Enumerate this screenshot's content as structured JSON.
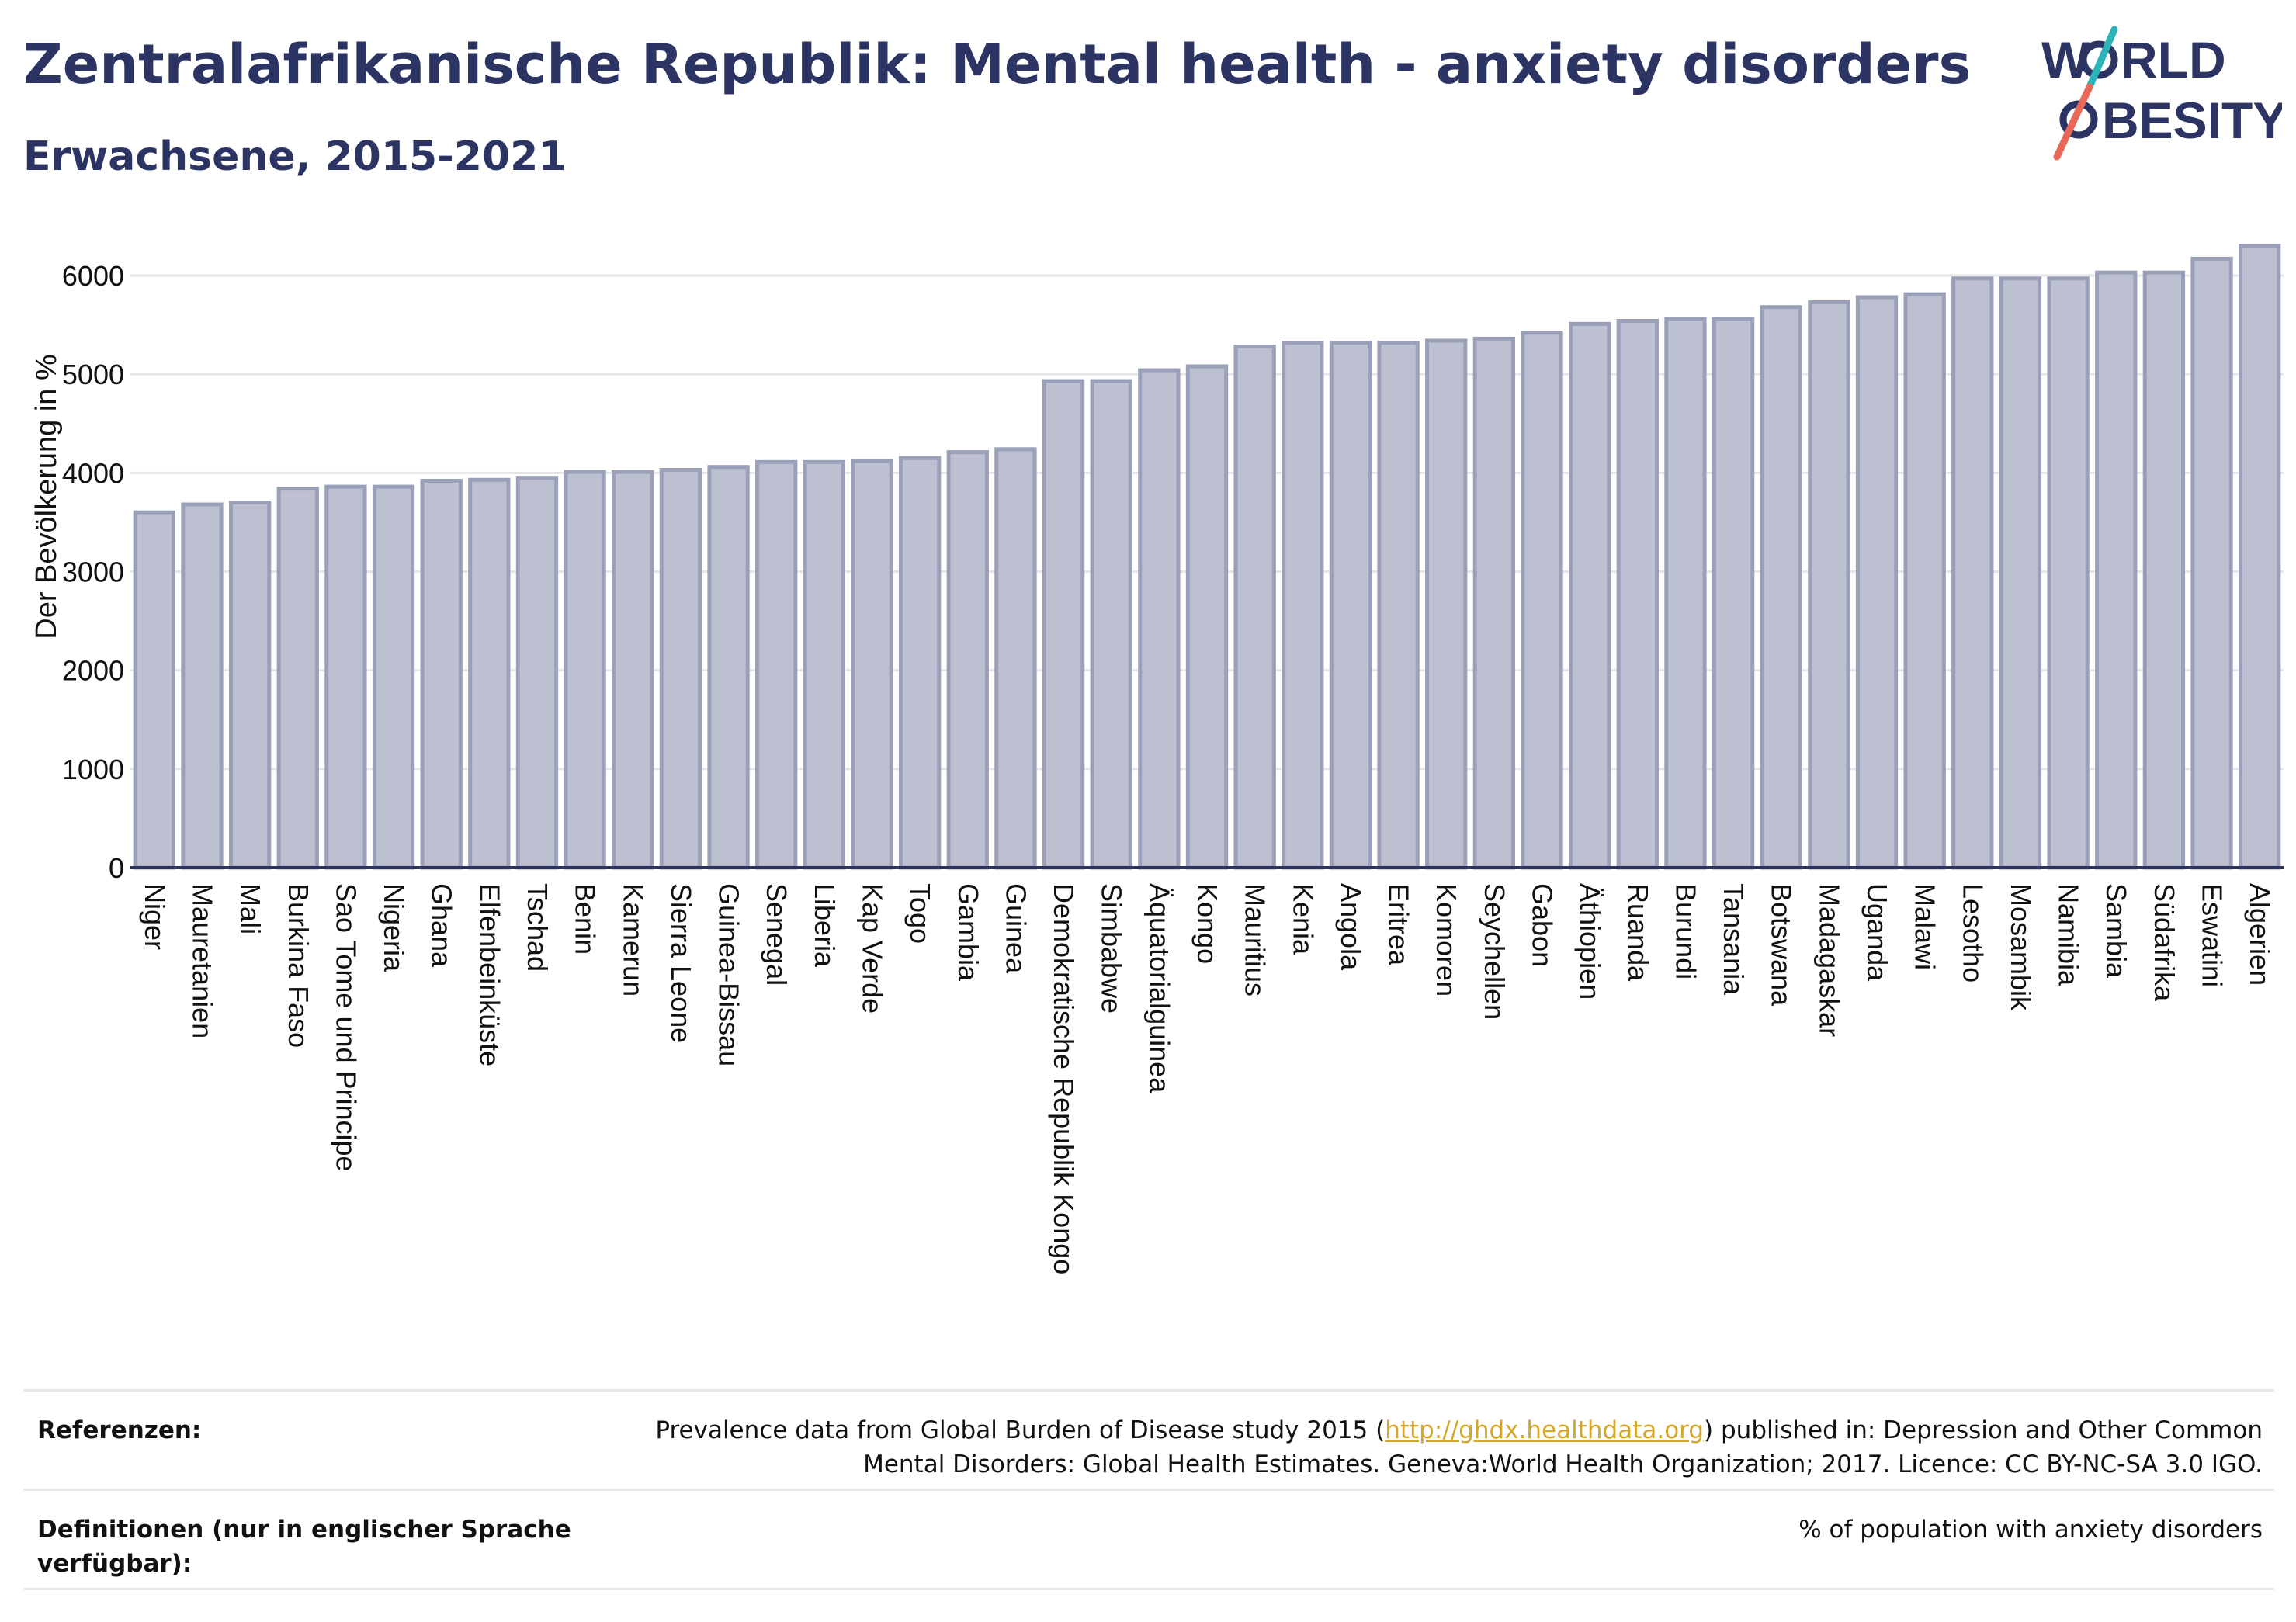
{
  "title": "Zentralafrikanische Republik: Mental health - anxiety disorders",
  "subtitle": "Erwachsene, 2015-2021",
  "logo": {
    "line1_a": "W",
    "line1_b": "RLD",
    "line2_b": "BESITY",
    "colors": {
      "navy": "#2b3462",
      "teal": "#2bb5b8",
      "coral": "#e8685a"
    }
  },
  "footer": {
    "references_label": "Referenzen:",
    "references_text_1": "Prevalence data from Global Burden of Disease study 2015 (",
    "references_link": "http://ghdx.healthdata.org",
    "references_text_2": ") published in: Depression and Other Common Mental Disorders: Global Health Estimates. Geneva:World Health Organization; 2017. Licence: CC BY-NC-SA 3.0 IGO.",
    "definitions_label": "Definitionen (nur in englischer Sprache verfügbar):",
    "definitions_text": "% of population with anxiety disorders"
  },
  "chart_data": {
    "type": "bar",
    "ylabel": "Der Bevölkerung in %",
    "xlabel": "",
    "ylim": [
      0,
      6500
    ],
    "yticks": [
      0,
      1000,
      2000,
      3000,
      4000,
      5000,
      6000
    ],
    "grid": true,
    "bar_color": "#bcc0d0",
    "bar_edge_color": "#9aa0b8",
    "categories": [
      "Niger",
      "Mauretanien",
      "Mali",
      "Burkina Faso",
      "Sao Tome und Principe",
      "Nigeria",
      "Ghana",
      "Elfenbeinküste",
      "Tschad",
      "Benin",
      "Kamerun",
      "Sierra Leone",
      "Guinea-Bissau",
      "Senegal",
      "Liberia",
      "Kap Verde",
      "Togo",
      "Gambia",
      "Guinea",
      "Demokratische Republik Kongo",
      "Simbabwe",
      "Äquatorialguinea",
      "Kongo",
      "Mauritius",
      "Kenia",
      "Angola",
      "Eritrea",
      "Komoren",
      "Seychellen",
      "Gabon",
      "Äthiopien",
      "Ruanda",
      "Burundi",
      "Tansania",
      "Botswana",
      "Madagaskar",
      "Uganda",
      "Malawi",
      "Lesotho",
      "Mosambik",
      "Namibia",
      "Sambia",
      "Südafrika",
      "Eswatini",
      "Algerien"
    ],
    "values": [
      3600,
      3680,
      3700,
      3840,
      3860,
      3860,
      3920,
      3930,
      3950,
      4010,
      4010,
      4030,
      4060,
      4110,
      4110,
      4120,
      4150,
      4210,
      4240,
      4930,
      4930,
      5040,
      5080,
      5280,
      5320,
      5320,
      5320,
      5340,
      5360,
      5420,
      5510,
      5540,
      5560,
      5560,
      5680,
      5730,
      5780,
      5810,
      5970,
      5970,
      5970,
      6030,
      6030,
      6170,
      6300
    ]
  }
}
